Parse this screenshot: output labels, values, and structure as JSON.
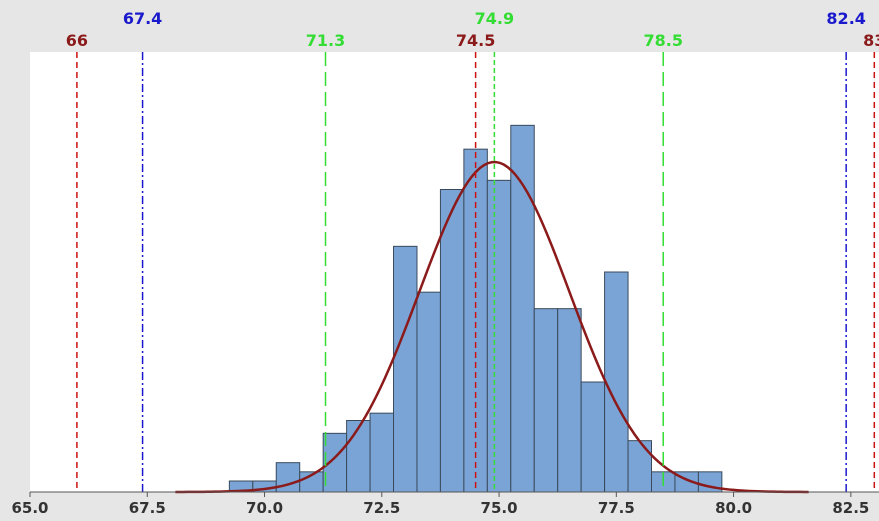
{
  "chart_data": {
    "type": "bar",
    "title": "",
    "xlabel": "",
    "ylabel": "",
    "xlim": [
      65.0,
      83.1
    ],
    "ylim": [
      0,
      12
    ],
    "x_ticks": [
      "65.0",
      "67.5",
      "70.0",
      "72.5",
      "75.0",
      "77.5",
      "80.0",
      "82.5"
    ],
    "x_tick_values": [
      65.0,
      67.5,
      70.0,
      72.5,
      75.0,
      77.5,
      80.0,
      82.5
    ],
    "bin_width": 0.5,
    "bins": [
      {
        "start": 69.25,
        "end": 69.75,
        "count": 0.3
      },
      {
        "start": 69.75,
        "end": 70.25,
        "count": 0.3
      },
      {
        "start": 70.25,
        "end": 70.75,
        "count": 0.8
      },
      {
        "start": 70.75,
        "end": 71.25,
        "count": 0.55
      },
      {
        "start": 71.25,
        "end": 71.75,
        "count": 1.6
      },
      {
        "start": 71.75,
        "end": 72.25,
        "count": 1.95
      },
      {
        "start": 72.25,
        "end": 72.75,
        "count": 2.15
      },
      {
        "start": 72.75,
        "end": 73.25,
        "count": 6.7
      },
      {
        "start": 73.25,
        "end": 73.75,
        "count": 5.45
      },
      {
        "start": 73.75,
        "end": 74.25,
        "count": 8.25
      },
      {
        "start": 74.25,
        "end": 74.75,
        "count": 9.35
      },
      {
        "start": 74.75,
        "end": 75.25,
        "count": 8.5
      },
      {
        "start": 75.25,
        "end": 75.75,
        "count": 10.0
      },
      {
        "start": 75.75,
        "end": 76.25,
        "count": 5.0
      },
      {
        "start": 76.25,
        "end": 76.75,
        "count": 5.0
      },
      {
        "start": 76.75,
        "end": 77.25,
        "count": 3.0
      },
      {
        "start": 77.25,
        "end": 77.75,
        "count": 6.0
      },
      {
        "start": 77.75,
        "end": 78.25,
        "count": 1.4
      },
      {
        "start": 78.25,
        "end": 78.75,
        "count": 0.55
      },
      {
        "start": 78.75,
        "end": 79.25,
        "count": 0.55
      },
      {
        "start": 79.25,
        "end": 79.75,
        "count": 0.55
      }
    ],
    "fit_curve": {
      "mean": 74.9,
      "sd": 1.6,
      "peak": 9.0,
      "x_start": 68.1,
      "x_end": 81.6,
      "color": "#8b1a1a"
    },
    "reference_lines": [
      {
        "value": 66.0,
        "label": "66",
        "color": "#cc1111",
        "label_color": "#8b1a1a",
        "style": "dash",
        "label_row": "lower"
      },
      {
        "value": 67.4,
        "label": "67.4",
        "color": "#1a1acc",
        "label_color": "#1a1acc",
        "style": "dashdot",
        "label_row": "upper"
      },
      {
        "value": 71.3,
        "label": "71.3",
        "color": "#33dd33",
        "label_color": "#33dd33",
        "style": "longdash",
        "label_row": "lower"
      },
      {
        "value": 74.5,
        "label": "74.5",
        "color": "#cc1111",
        "label_color": "#8b1a1a",
        "style": "dash",
        "label_row": "lower"
      },
      {
        "value": 74.9,
        "label": "74.9",
        "color": "#33dd33",
        "label_color": "#33dd33",
        "style": "dashshort",
        "label_row": "upper"
      },
      {
        "value": 78.5,
        "label": "78.5",
        "color": "#33dd33",
        "label_color": "#33dd33",
        "style": "longdash",
        "label_row": "lower"
      },
      {
        "value": 82.4,
        "label": "82.4",
        "color": "#1a1acc",
        "label_color": "#1a1acc",
        "style": "dashdot",
        "label_row": "upper"
      },
      {
        "value": 83.0,
        "label": "83",
        "color": "#cc1111",
        "label_color": "#8b1a1a",
        "style": "dash",
        "label_row": "lower"
      }
    ],
    "grid": false,
    "bar_color": "#7aa4d6",
    "bar_edge_color": "#3a4a5c"
  }
}
